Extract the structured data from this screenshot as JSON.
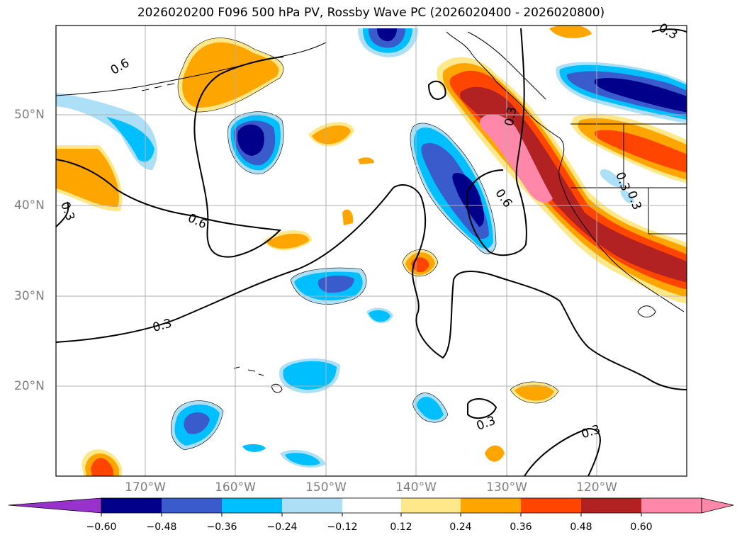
{
  "title": "2026020200 F096 500 hPa PV, Rossby Wave PC (2026020400 - 2026020800)",
  "map": {
    "lon_labels": [
      "170°W",
      "160°W",
      "150°W",
      "140°W",
      "130°W",
      "120°W"
    ],
    "lat_labels": [
      "50°N",
      "40°N",
      "30°N",
      "20°N"
    ],
    "contour_labels": [
      "0.6",
      "0.3",
      "0.6",
      "0.3",
      "0.3",
      "0.6",
      "0.3",
      "0.3",
      "0.3",
      "0.3",
      "0.3"
    ]
  },
  "colorbar": {
    "ticks": [
      "−0.60",
      "−0.48",
      "−0.36",
      "−0.24",
      "−0.12",
      "0.12",
      "0.24",
      "0.36",
      "0.48",
      "0.60"
    ],
    "colors": [
      "#9932CC",
      "#00008B",
      "#3A5BCB",
      "#00BFFF",
      "#ADE0F7",
      "#FFFFFF",
      "#FFE88A",
      "#FFA500",
      "#FF4500",
      "#B22222",
      "#FF88AA"
    ]
  }
}
